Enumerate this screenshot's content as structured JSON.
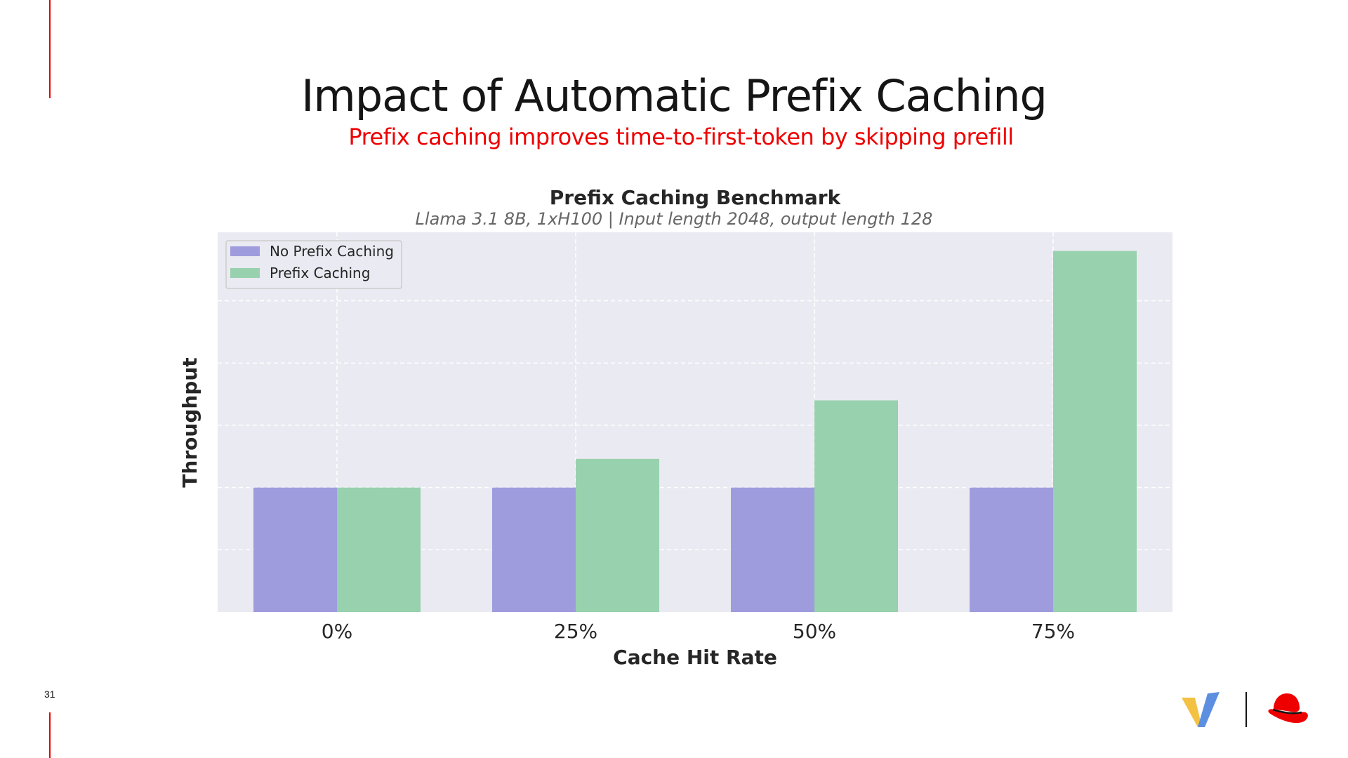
{
  "slide": {
    "number": "31",
    "title": "Impact of Automatic Prefix Caching",
    "subtitle": "Prefix caching improves time-to-first-token by skipping prefill"
  },
  "chart_data": {
    "type": "bar",
    "title": "Prefix Caching Benchmark",
    "subtitle": "Llama 3.1 8B, 1xH100 | Input length 2048, output length 128",
    "xlabel": "Cache Hit Rate",
    "ylabel": "Throughput",
    "categories": [
      "0%",
      "25%",
      "50%",
      "75%"
    ],
    "series": [
      {
        "name": "No Prefix Caching",
        "color": "#9f9cde",
        "values": [
          1.0,
          1.0,
          1.0,
          1.0
        ]
      },
      {
        "name": "Prefix Caching",
        "color": "#98d1ae",
        "values": [
          1.0,
          1.23,
          1.7,
          2.9
        ]
      }
    ],
    "ylim": [
      0,
      3.05
    ],
    "y_ticks_labeled": false,
    "grid": true,
    "legend": "top-left",
    "plot_background": "#eaeaf2"
  },
  "icons": [
    "vllm-logo-icon",
    "redhat-logo-icon"
  ],
  "colors": {
    "accent": "#ee0000",
    "text": "#151515"
  }
}
